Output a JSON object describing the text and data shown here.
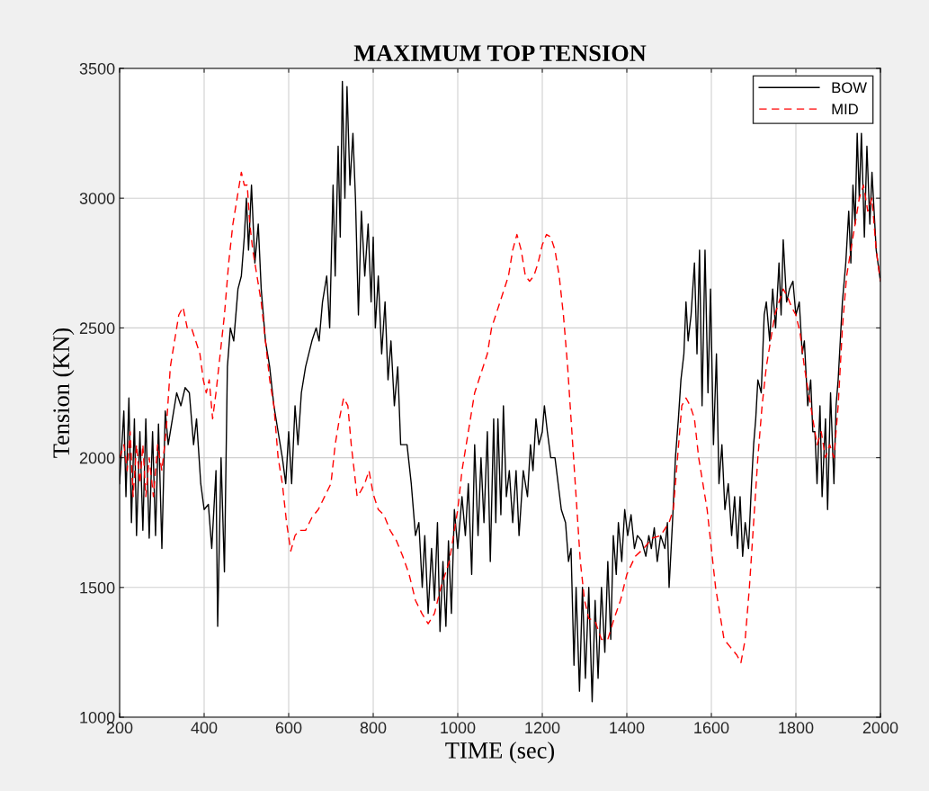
{
  "chart_data": {
    "type": "line",
    "title": "MAXIMUM TOP TENSION",
    "xlabel": "TIME (sec)",
    "ylabel": "Tension (KN)",
    "xlim": [
      200,
      2000
    ],
    "xticks": [
      200,
      400,
      600,
      800,
      1000,
      1200,
      1400,
      1600,
      1800,
      2000
    ],
    "ylim": [
      1000,
      3500
    ],
    "yticks": [
      1000,
      1500,
      2000,
      2500,
      3000,
      3500
    ],
    "grid": true,
    "legend": "top right",
    "marker": "none",
    "series": [
      {
        "name": "BOW",
        "color": "#000000",
        "line_style": "solid",
        "x": [
          200,
          210,
          215,
          222,
          228,
          235,
          240,
          248,
          255,
          262,
          270,
          278,
          285,
          292,
          300,
          308,
          315,
          325,
          335,
          345,
          355,
          365,
          375,
          382,
          392,
          400,
          410,
          418,
          428,
          432,
          440,
          448,
          455,
          462,
          470,
          480,
          488,
          495,
          500,
          505,
          512,
          520,
          528,
          535,
          545,
          555,
          565,
          575,
          585,
          593,
          600,
          607,
          615,
          622,
          630,
          640,
          655,
          665,
          672,
          680,
          690,
          697,
          705,
          710,
          717,
          722,
          727,
          733,
          738,
          745,
          752,
          758,
          765,
          772,
          780,
          788,
          795,
          800,
          805,
          812,
          820,
          828,
          835,
          842,
          850,
          858,
          865,
          872,
          880,
          890,
          900,
          908,
          916,
          922,
          930,
          938,
          945,
          952,
          958,
          965,
          972,
          978,
          985,
          992,
          1000,
          1010,
          1018,
          1025,
          1033,
          1040,
          1048,
          1055,
          1062,
          1070,
          1077,
          1085,
          1090,
          1095,
          1102,
          1108,
          1115,
          1122,
          1130,
          1138,
          1145,
          1155,
          1165,
          1172,
          1178,
          1185,
          1192,
          1200,
          1205,
          1212,
          1220,
          1230,
          1245,
          1255,
          1262,
          1268,
          1275,
          1280,
          1288,
          1295,
          1302,
          1310,
          1318,
          1325,
          1332,
          1340,
          1348,
          1355,
          1362,
          1368,
          1375,
          1380,
          1388,
          1395,
          1402,
          1410,
          1418,
          1425,
          1435,
          1445,
          1452,
          1458,
          1465,
          1472,
          1480,
          1490,
          1496,
          1500,
          1508,
          1515,
          1522,
          1528,
          1535,
          1540,
          1545,
          1552,
          1560,
          1566,
          1572,
          1578,
          1585,
          1592,
          1598,
          1605,
          1612,
          1618,
          1625,
          1632,
          1640,
          1648,
          1655,
          1662,
          1668,
          1674,
          1680,
          1688,
          1695,
          1700,
          1705,
          1710,
          1718,
          1725,
          1730,
          1738,
          1745,
          1752,
          1760,
          1765,
          1770,
          1778,
          1785,
          1793,
          1800,
          1808,
          1815,
          1820,
          1828,
          1835,
          1840,
          1845,
          1850,
          1857,
          1862,
          1870,
          1875,
          1882,
          1890,
          1895,
          1900,
          1910,
          1918,
          1925,
          1930,
          1935,
          1940,
          1945,
          1950,
          1955,
          1962,
          1968,
          1975,
          1980,
          1990,
          2000
        ],
        "values": [
          1900,
          2180,
          1850,
          2230,
          1750,
          2150,
          1700,
          2100,
          1720,
          2150,
          1690,
          2100,
          1700,
          2130,
          1650,
          2180,
          2050,
          2150,
          2250,
          2200,
          2270,
          2250,
          2050,
          2150,
          1900,
          1800,
          1820,
          1650,
          1950,
          1350,
          2000,
          1560,
          2350,
          2500,
          2450,
          2650,
          2700,
          2850,
          3000,
          2800,
          3050,
          2750,
          2900,
          2650,
          2450,
          2350,
          2200,
          2100,
          2000,
          1900,
          2100,
          1900,
          2200,
          2050,
          2250,
          2350,
          2450,
          2500,
          2450,
          2600,
          2700,
          2500,
          3050,
          2700,
          3200,
          2850,
          3450,
          3000,
          3430,
          3050,
          3250,
          3000,
          2550,
          2950,
          2700,
          2900,
          2600,
          2850,
          2500,
          2700,
          2400,
          2600,
          2300,
          2450,
          2200,
          2350,
          2050,
          2050,
          2050,
          1900,
          1700,
          1750,
          1500,
          1700,
          1400,
          1650,
          1450,
          1750,
          1330,
          1600,
          1350,
          1680,
          1400,
          1800,
          1650,
          1850,
          1700,
          1900,
          1550,
          2050,
          1700,
          2000,
          1750,
          2100,
          1600,
          2150,
          1750,
          2150,
          1780,
          2200,
          1850,
          1950,
          1750,
          1950,
          1700,
          1950,
          1850,
          2050,
          1950,
          2150,
          2050,
          2100,
          2200,
          2100,
          2000,
          2000,
          1800,
          1750,
          1600,
          1650,
          1200,
          1500,
          1100,
          1500,
          1150,
          1500,
          1060,
          1450,
          1150,
          1500,
          1250,
          1600,
          1300,
          1700,
          1550,
          1750,
          1600,
          1800,
          1700,
          1780,
          1650,
          1700,
          1680,
          1620,
          1700,
          1650,
          1730,
          1600,
          1700,
          1650,
          1750,
          1500,
          1750,
          2000,
          2150,
          2300,
          2400,
          2600,
          2450,
          2550,
          2750,
          2400,
          2800,
          2200,
          2800,
          2250,
          2650,
          2050,
          2400,
          1900,
          2050,
          1800,
          1900,
          1700,
          1850,
          1650,
          1850,
          1620,
          1750,
          1650,
          1900,
          2050,
          2150,
          2300,
          2250,
          2550,
          2600,
          2450,
          2650,
          2500,
          2750,
          2550,
          2840,
          2600,
          2650,
          2680,
          2550,
          2600,
          2400,
          2450,
          2200,
          2300,
          2100,
          2100,
          1900,
          2200,
          1850,
          2150,
          1800,
          2250,
          1900,
          2200,
          2300,
          2600,
          2750,
          2950,
          2750,
          3050,
          2900,
          3250,
          3000,
          3250,
          2850,
          3200,
          2900,
          3100,
          2800,
          2680
        ]
      },
      {
        "name": "MID",
        "color": "#ff0000",
        "line_style": "dashed",
        "x": [
          200,
          210,
          218,
          225,
          232,
          240,
          248,
          255,
          262,
          270,
          280,
          290,
          300,
          310,
          320,
          330,
          340,
          350,
          360,
          370,
          380,
          390,
          398,
          405,
          412,
          420,
          428,
          438,
          448,
          458,
          468,
          478,
          488,
          495,
          502,
          508,
          515,
          525,
          535,
          545,
          555,
          565,
          575,
          585,
          595,
          605,
          615,
          625,
          640,
          655,
          670,
          685,
          700,
          710,
          720,
          730,
          740,
          748,
          755,
          762,
          770,
          780,
          790,
          800,
          812,
          825,
          840,
          855,
          870,
          885,
          900,
          915,
          930,
          945,
          960,
          970,
          980,
          990,
          1000,
          1010,
          1020,
          1030,
          1040,
          1050,
          1060,
          1070,
          1080,
          1090,
          1100,
          1110,
          1120,
          1130,
          1140,
          1150,
          1160,
          1170,
          1180,
          1190,
          1200,
          1210,
          1220,
          1230,
          1240,
          1250,
          1260,
          1270,
          1280,
          1290,
          1300,
          1310,
          1325,
          1340,
          1355,
          1370,
          1385,
          1400,
          1420,
          1440,
          1460,
          1480,
          1500,
          1510,
          1520,
          1530,
          1540,
          1550,
          1560,
          1570,
          1580,
          1590,
          1600,
          1610,
          1620,
          1630,
          1645,
          1660,
          1670,
          1680,
          1690,
          1700,
          1710,
          1720,
          1730,
          1740,
          1750,
          1760,
          1770,
          1780,
          1790,
          1800,
          1810,
          1820,
          1830,
          1840,
          1850,
          1860,
          1870,
          1880,
          1890,
          1900,
          1910,
          1920,
          1930,
          1940,
          1950,
          1960,
          1970,
          1980,
          1990,
          2000
        ],
        "values": [
          2000,
          2050,
          1950,
          2100,
          1850,
          2050,
          1900,
          2050,
          1850,
          2000,
          1850,
          2050,
          1950,
          2100,
          2350,
          2450,
          2550,
          2580,
          2500,
          2500,
          2450,
          2400,
          2300,
          2250,
          2300,
          2150,
          2250,
          2400,
          2550,
          2750,
          2900,
          3000,
          3100,
          3050,
          3050,
          2900,
          2800,
          2700,
          2600,
          2450,
          2300,
          2200,
          2000,
          1900,
          1750,
          1640,
          1700,
          1720,
          1720,
          1770,
          1800,
          1850,
          1900,
          2050,
          2150,
          2230,
          2200,
          2050,
          1950,
          1850,
          1870,
          1900,
          1950,
          1860,
          1800,
          1780,
          1720,
          1680,
          1620,
          1550,
          1450,
          1400,
          1360,
          1400,
          1500,
          1550,
          1600,
          1700,
          1800,
          1950,
          2050,
          2150,
          2250,
          2300,
          2350,
          2400,
          2500,
          2550,
          2600,
          2650,
          2700,
          2800,
          2860,
          2800,
          2700,
          2680,
          2700,
          2750,
          2820,
          2860,
          2850,
          2800,
          2700,
          2550,
          2350,
          2100,
          1850,
          1600,
          1450,
          1380,
          1370,
          1300,
          1300,
          1380,
          1450,
          1550,
          1620,
          1650,
          1690,
          1700,
          1750,
          1800,
          2000,
          2200,
          2230,
          2200,
          2150,
          2000,
          1900,
          1800,
          1650,
          1500,
          1400,
          1300,
          1270,
          1240,
          1210,
          1300,
          1500,
          1750,
          2000,
          2200,
          2350,
          2450,
          2550,
          2600,
          2650,
          2620,
          2580,
          2550,
          2480,
          2350,
          2250,
          2150,
          2050,
          2100,
          2000,
          2050,
          2000,
          2200,
          2500,
          2700,
          2800,
          2900,
          3000,
          3050,
          2950,
          3000,
          2800,
          2680
        ]
      }
    ]
  }
}
